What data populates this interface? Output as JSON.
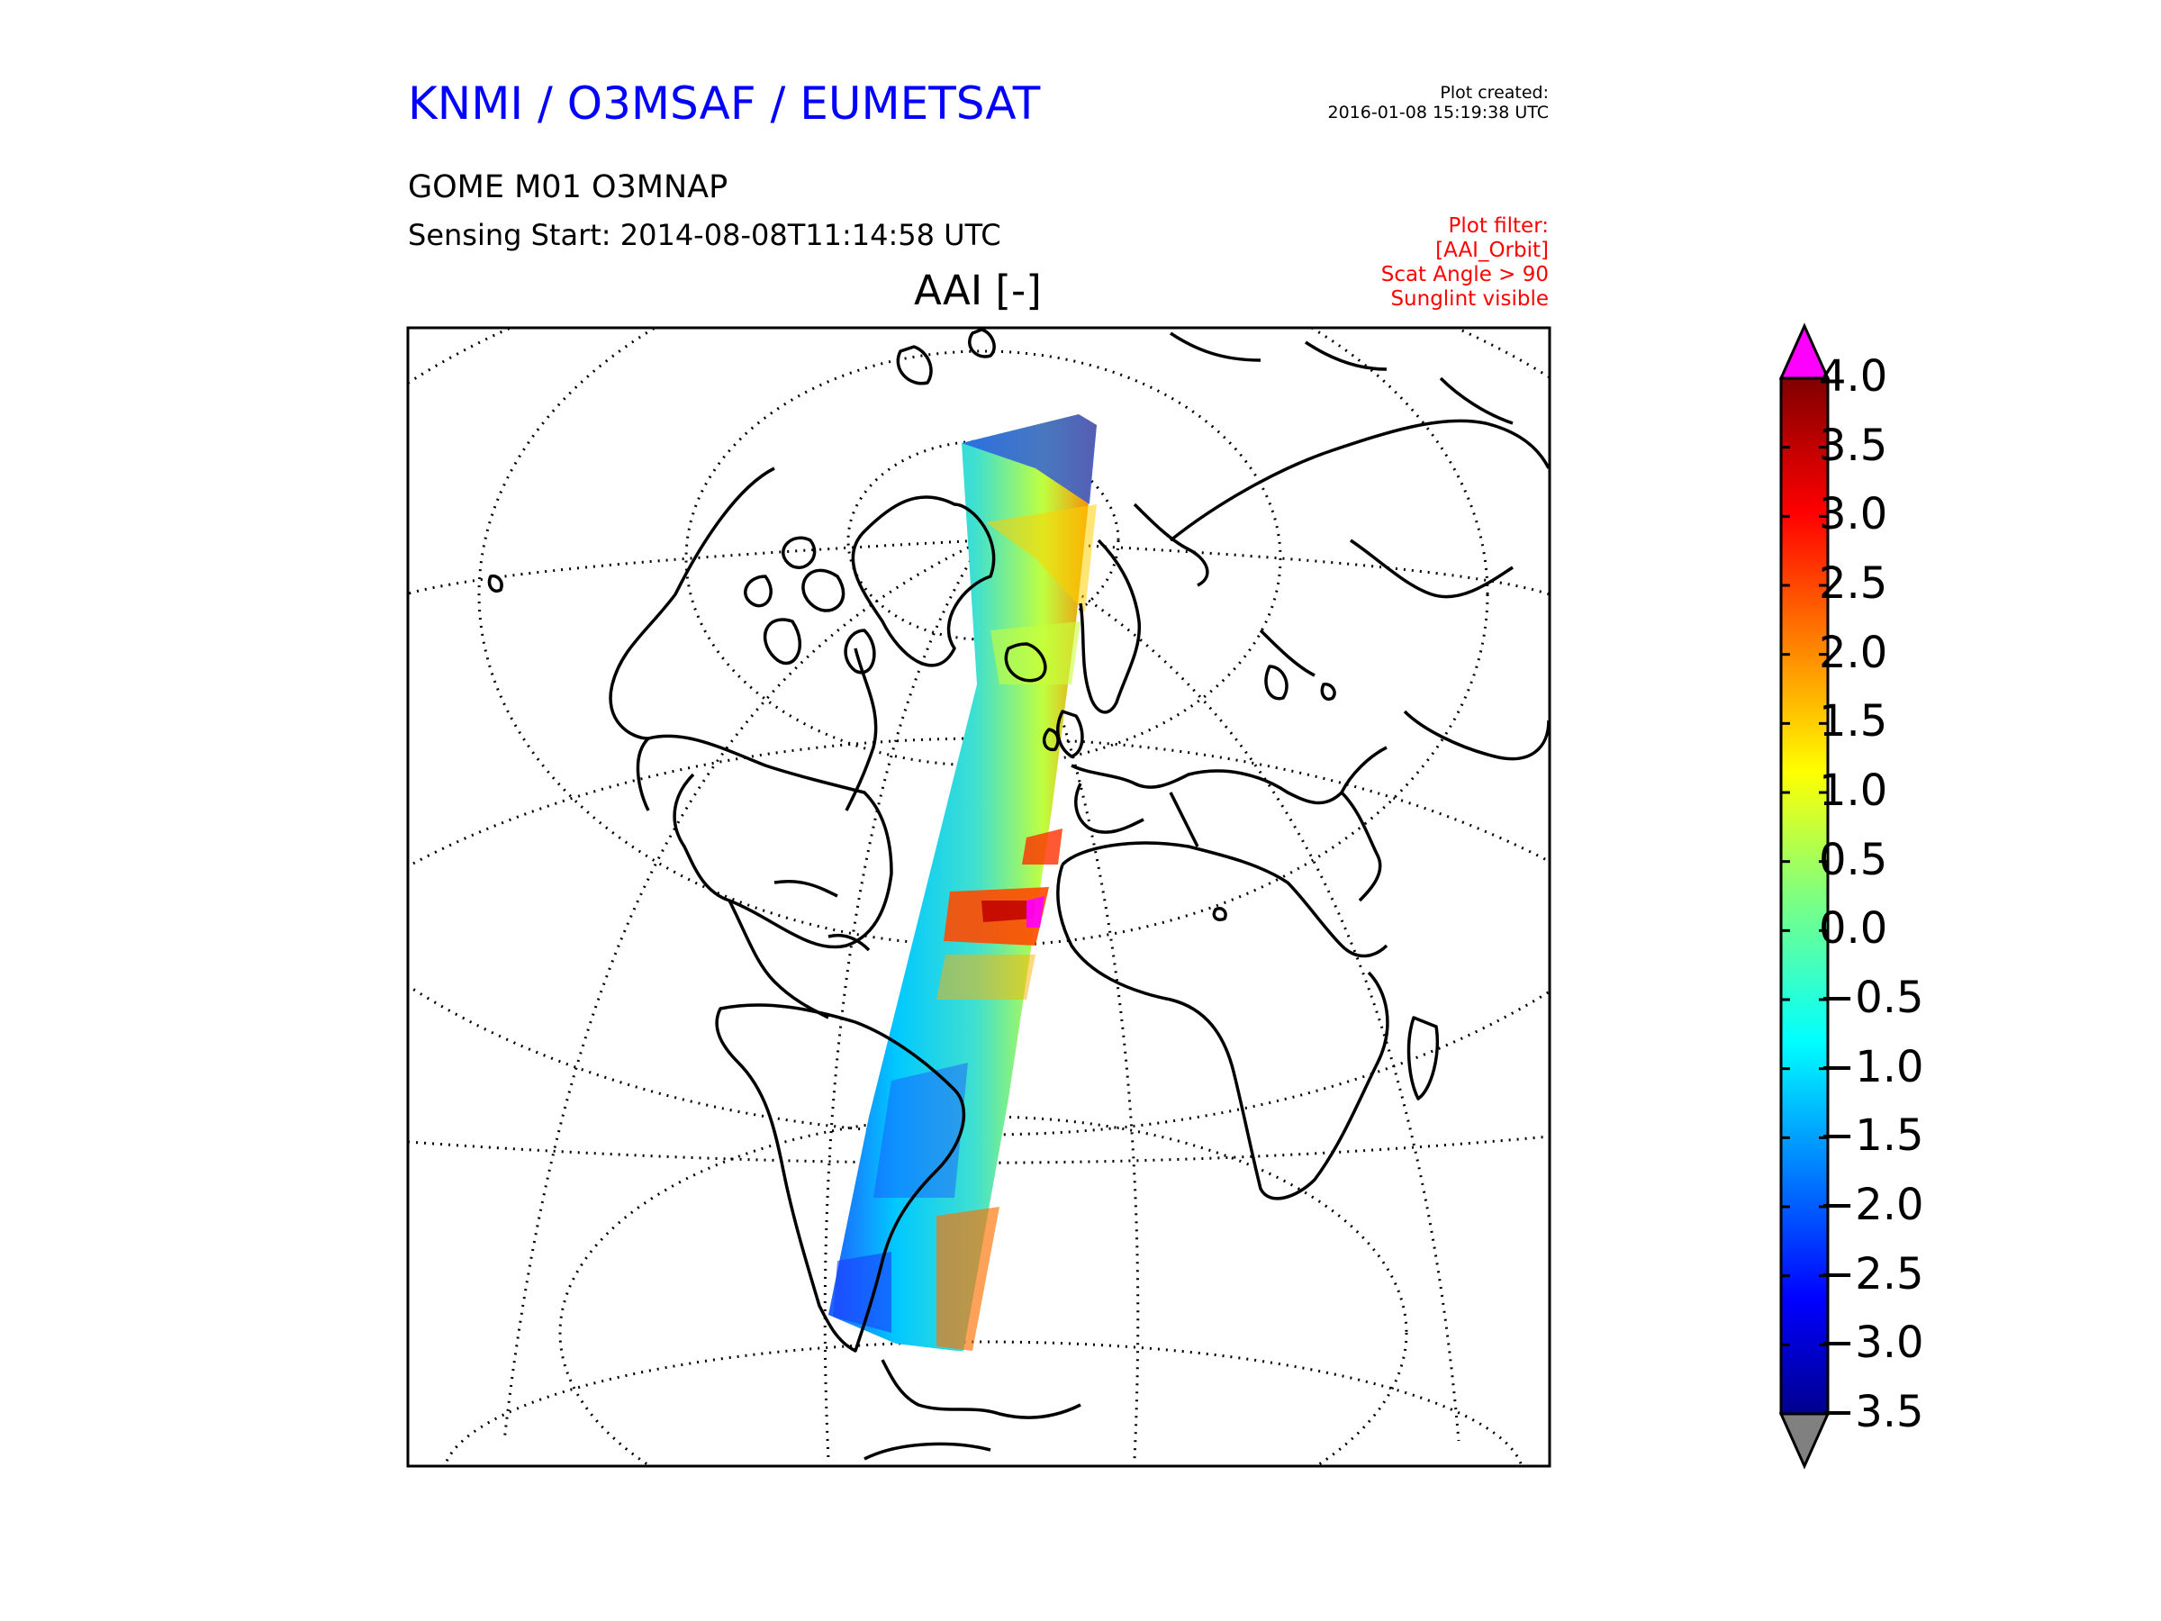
{
  "header": {
    "organization": "KNMI / O3MSAF / EUMETSAT",
    "plot_created_label": "Plot created:",
    "plot_created_time": "2016-01-08 15:19:38 UTC",
    "product": "GOME M01 O3MNAP",
    "sensing_start": "Sensing Start: 2014-08-08T11:14:58 UTC",
    "variable": "AAI [-]",
    "filters": [
      "Plot filter:",
      "[AAI_Orbit]",
      "Scat Angle > 90",
      "Sunglint visible"
    ]
  },
  "colorbar": {
    "ticks": [
      "4.0",
      "3.5",
      "3.0",
      "2.5",
      "2.0",
      "1.5",
      "1.0",
      "0.5",
      "0.0",
      "−0.5",
      "−1.0",
      "−1.5",
      "−2.0",
      "−2.5",
      "−3.0",
      "−3.5"
    ],
    "min": -3.5,
    "max": 4.0,
    "over_color": "#ff00ff",
    "under_color": "#808080",
    "colormap": "jet"
  },
  "map": {
    "projection": "orthographic",
    "graticule": "dotted",
    "coastlines": true,
    "swath_colors": [
      "#00008f",
      "#0000ff",
      "#00bfff",
      "#40ffbf",
      "#bfff40",
      "#ffbf00",
      "#ff4000",
      "#800000"
    ]
  }
}
